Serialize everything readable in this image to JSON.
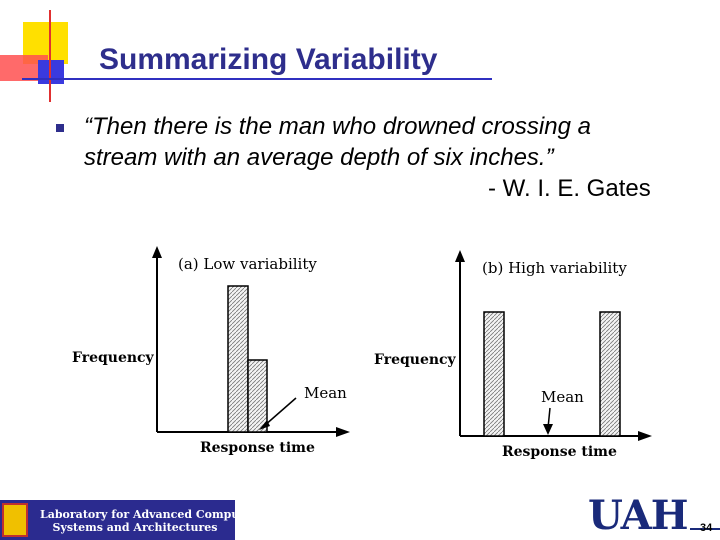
{
  "slide": {
    "title": "Summarizing Variability",
    "quote_line1": "“Then there is the man who drowned crossing a",
    "quote_line2": "stream with an average depth of six inches.”",
    "attribution": "- W. I. E. Gates",
    "page_number": "34"
  },
  "charts": [
    {
      "label": "(a) Low variability",
      "ylabel": "Frequency",
      "xlabel": "Response time",
      "mean_label": "Mean"
    },
    {
      "label": "(b) High variability",
      "ylabel": "Frequency",
      "xlabel": "Response time",
      "mean_label": "Mean"
    }
  ],
  "footer": {
    "lab_line1": "Laboratory for Advanced Computer",
    "lab_line2": "Systems and Architectures",
    "university_logo": "UAH"
  },
  "colors": {
    "title": "#2e2e8c",
    "logo_bg": "#2b2b8f"
  }
}
